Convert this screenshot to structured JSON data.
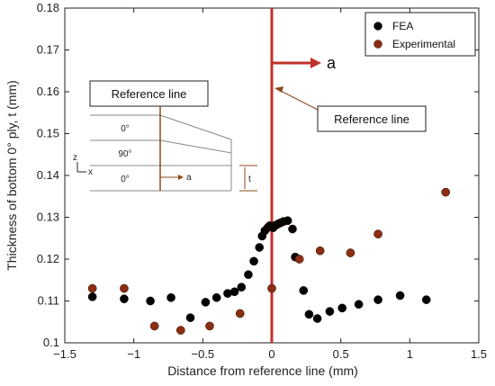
{
  "chart_data": {
    "type": "scatter",
    "xlabel": "Distance from reference line (mm)",
    "ylabel": "Thickness of bottom 0° ply, t (mm)",
    "xlim": [
      -1.5,
      1.5
    ],
    "ylim": [
      0.1,
      0.18
    ],
    "xticks": [
      "−1.5",
      "−1",
      "−0.5",
      "0",
      "0.5",
      "1",
      "1.5"
    ],
    "yticks": [
      "0.1",
      "0.11",
      "0.12",
      "0.13",
      "0.14",
      "0.15",
      "0.16",
      "0.17",
      "0.18"
    ],
    "legend_position": "top-right",
    "series": [
      {
        "name": "FEA",
        "color": "#000000",
        "points": [
          [
            -1.3,
            0.111
          ],
          [
            -1.07,
            0.1105
          ],
          [
            -0.88,
            0.11
          ],
          [
            -0.73,
            0.1108
          ],
          [
            -0.59,
            0.106
          ],
          [
            -0.48,
            0.1097
          ],
          [
            -0.4,
            0.1108
          ],
          [
            -0.32,
            0.1118
          ],
          [
            -0.27,
            0.1122
          ],
          [
            -0.22,
            0.1133
          ],
          [
            -0.17,
            0.1163
          ],
          [
            -0.13,
            0.1195
          ],
          [
            -0.09,
            0.1228
          ],
          [
            -0.07,
            0.1255
          ],
          [
            -0.05,
            0.1268
          ],
          [
            -0.03,
            0.1275
          ],
          [
            -0.015,
            0.128
          ],
          [
            0.0,
            0.1278
          ],
          [
            0.01,
            0.1275
          ],
          [
            0.02,
            0.128
          ],
          [
            0.035,
            0.1282
          ],
          [
            0.05,
            0.1285
          ],
          [
            0.065,
            0.1287
          ],
          [
            0.085,
            0.129
          ],
          [
            0.115,
            0.1292
          ],
          [
            0.15,
            0.1272
          ],
          [
            0.17,
            0.1205
          ],
          [
            0.23,
            0.1125
          ],
          [
            0.27,
            0.1068
          ],
          [
            0.33,
            0.1058
          ],
          [
            0.42,
            0.1075
          ],
          [
            0.51,
            0.1083
          ],
          [
            0.63,
            0.1092
          ],
          [
            0.77,
            0.1103
          ],
          [
            0.93,
            0.1113
          ],
          [
            1.12,
            0.1103
          ]
        ]
      },
      {
        "name": "Experimental",
        "color": "#8b2e12",
        "points": [
          [
            -1.3,
            0.113
          ],
          [
            -1.07,
            0.113
          ],
          [
            -0.85,
            0.104
          ],
          [
            -0.66,
            0.103
          ],
          [
            -0.45,
            0.104
          ],
          [
            -0.23,
            0.107
          ],
          [
            0.0,
            0.113
          ],
          [
            0.2,
            0.12
          ],
          [
            0.35,
            0.122
          ],
          [
            0.57,
            0.1215
          ],
          [
            0.77,
            0.126
          ],
          [
            1.26,
            0.136
          ]
        ]
      }
    ],
    "annotations": {
      "arrow_label": "a",
      "reference_callout": "Reference line",
      "inset_title": "Reference line",
      "inset_layers": [
        "0°",
        "90°",
        "0°"
      ],
      "inset_axes": [
        "z",
        "x"
      ],
      "inset_a": "a",
      "inset_t": "t"
    },
    "colors": {
      "reference_line": "#c0322b",
      "axis": "#222222"
    }
  }
}
